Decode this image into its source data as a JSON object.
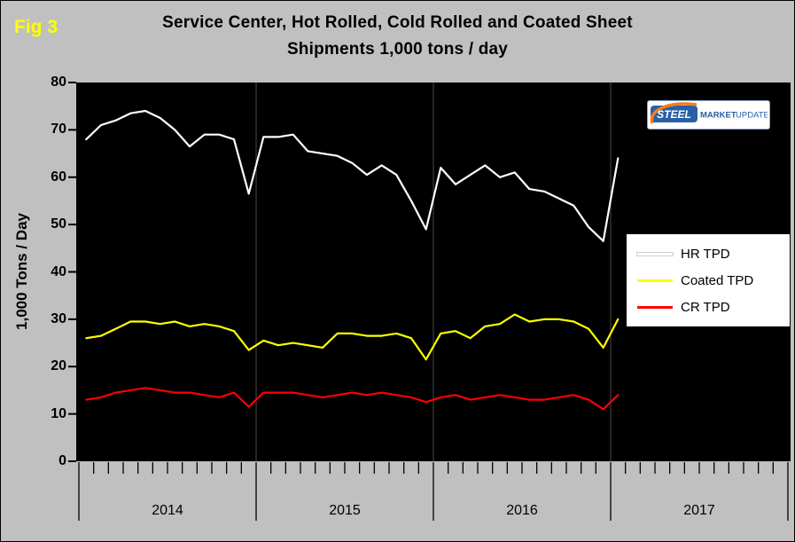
{
  "fig_label": "Fig 3",
  "title_line1": "Service Center, Hot Rolled, Cold Rolled and Coated Sheet",
  "title_line2": "Shipments 1,000 tons / day",
  "y_axis_title": "1,000 Tons / Day",
  "logo": {
    "word1": "STEEL",
    "word2": "MARKET",
    "word3": "UPDATE"
  },
  "colors": {
    "page_background": "#c0c0c0",
    "plot_background": "#000000",
    "hr_line": "#ffffff",
    "coated_line": "#ffff00",
    "cr_line": "#ff0000",
    "fig_label": "#ffff00"
  },
  "chart_data": {
    "type": "line",
    "title": "Service Center, Hot Rolled, Cold Rolled and Coated Sheet Shipments 1,000 tons / day",
    "ylabel": "1,000 Tons / Day",
    "ylim": [
      0,
      80
    ],
    "y_ticks": [
      0,
      10,
      20,
      30,
      40,
      50,
      60,
      70,
      80
    ],
    "x_unit": "month",
    "x_start": "2014-01",
    "x_end": "2017-01",
    "year_labels": [
      "2014",
      "2015",
      "2016",
      "2017"
    ],
    "legend_position": "right",
    "grid": "year-boundary vertical lines only",
    "series": [
      {
        "name": "HR TPD",
        "color": "#ffffff",
        "values": [
          68,
          71,
          72,
          73.5,
          74,
          72.5,
          70,
          66.5,
          69,
          69,
          68,
          56.5,
          68.5,
          68.5,
          69,
          65.5,
          65,
          64.5,
          63,
          60.5,
          62.5,
          60.5,
          55,
          49,
          62,
          58.5,
          60.5,
          62.5,
          60,
          61,
          57.5,
          57,
          55.5,
          54,
          49.5,
          46.5,
          64
        ]
      },
      {
        "name": "Coated TPD",
        "color": "#ffff00",
        "values": [
          26,
          26.5,
          28,
          29.5,
          29.5,
          29,
          29.5,
          28.5,
          29,
          28.5,
          27.5,
          23.5,
          25.5,
          24.5,
          25,
          24.5,
          24,
          27,
          27,
          26.5,
          26.5,
          27,
          26,
          21.5,
          27,
          27.5,
          26,
          28.5,
          29,
          31,
          29.5,
          30,
          30,
          29.5,
          28,
          24,
          30
        ]
      },
      {
        "name": "CR TPD",
        "color": "#ff0000",
        "values": [
          13,
          13.5,
          14.5,
          15,
          15.5,
          15,
          14.5,
          14.5,
          14,
          13.5,
          14.5,
          11.5,
          14.5,
          14.5,
          14.5,
          14,
          13.5,
          14,
          14.5,
          14,
          14.5,
          14,
          13.5,
          12.5,
          13.5,
          14,
          13,
          13.5,
          14,
          13.5,
          13,
          13,
          13.5,
          14,
          13,
          11,
          14
        ]
      }
    ]
  }
}
